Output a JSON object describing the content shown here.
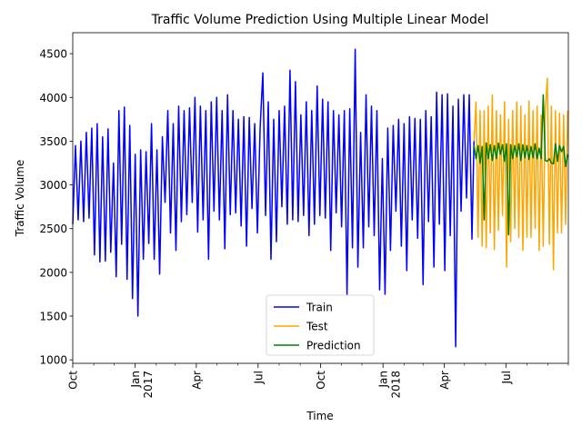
{
  "chart_data": {
    "type": "line",
    "title": "Traffic Volume Prediction Using Multiple Linear Model",
    "xlabel": "Time",
    "ylabel": "Traffic Volume",
    "xlim": [
      "2016-10-01",
      "2018-10-01"
    ],
    "ylim": [
      960,
      4740
    ],
    "grid": false,
    "legend_position": "lower-center",
    "y_ticks": [
      1000,
      1500,
      2000,
      2500,
      3000,
      3500,
      4000,
      4500
    ],
    "x_ticks": [
      {
        "date": "2016-10-01",
        "label": "Oct"
      },
      {
        "date": "2017-01-01",
        "label": "Jan",
        "label2": "2017"
      },
      {
        "date": "2017-04-01",
        "label": "Apr"
      },
      {
        "date": "2017-07-01",
        "label": "Jul"
      },
      {
        "date": "2017-10-01",
        "label": "Oct"
      },
      {
        "date": "2018-01-01",
        "label": "Jan",
        "label2": "2018"
      },
      {
        "date": "2018-04-01",
        "label": "Apr"
      },
      {
        "date": "2018-07-01",
        "label": "Jul"
      }
    ],
    "x_minor_ticks": [
      "2016-11-01",
      "2016-12-01",
      "2017-02-01",
      "2017-03-01",
      "2017-05-01",
      "2017-06-01",
      "2017-08-01",
      "2017-09-01",
      "2017-11-01",
      "2017-12-01",
      "2018-02-01",
      "2018-03-01",
      "2018-05-01",
      "2018-06-01",
      "2018-08-01",
      "2018-09-01",
      "2018-10-01"
    ],
    "series": [
      {
        "name": "Train",
        "color": "#0000ff",
        "x": [
          "2016-10-01",
          "2016-10-05",
          "2016-10-09",
          "2016-10-13",
          "2016-10-17",
          "2016-10-21",
          "2016-10-25",
          "2016-10-29",
          "2016-11-02",
          "2016-11-06",
          "2016-11-10",
          "2016-11-14",
          "2016-11-18",
          "2016-11-22",
          "2016-11-26",
          "2016-11-30",
          "2016-12-04",
          "2016-12-08",
          "2016-12-12",
          "2016-12-16",
          "2016-12-20",
          "2016-12-24",
          "2016-12-28",
          "2017-01-01",
          "2017-01-05",
          "2017-01-09",
          "2017-01-13",
          "2017-01-17",
          "2017-01-21",
          "2017-01-25",
          "2017-01-29",
          "2017-02-02",
          "2017-02-06",
          "2017-02-10",
          "2017-02-14",
          "2017-02-18",
          "2017-02-22",
          "2017-02-26",
          "2017-03-02",
          "2017-03-06",
          "2017-03-10",
          "2017-03-14",
          "2017-03-18",
          "2017-03-22",
          "2017-03-26",
          "2017-03-30",
          "2017-04-03",
          "2017-04-07",
          "2017-04-11",
          "2017-04-15",
          "2017-04-19",
          "2017-04-23",
          "2017-04-27",
          "2017-05-01",
          "2017-05-05",
          "2017-05-09",
          "2017-05-13",
          "2017-05-17",
          "2017-05-21",
          "2017-05-25",
          "2017-05-29",
          "2017-06-02",
          "2017-06-06",
          "2017-06-10",
          "2017-06-14",
          "2017-06-18",
          "2017-06-22",
          "2017-06-26",
          "2017-06-30",
          "2017-07-04",
          "2017-07-08",
          "2017-07-12",
          "2017-07-16",
          "2017-07-20",
          "2017-07-24",
          "2017-07-28",
          "2017-08-01",
          "2017-08-05",
          "2017-08-09",
          "2017-08-13",
          "2017-08-17",
          "2017-08-21",
          "2017-08-25",
          "2017-08-29",
          "2017-09-02",
          "2017-09-06",
          "2017-09-10",
          "2017-09-14",
          "2017-09-18",
          "2017-09-22",
          "2017-09-26",
          "2017-09-30",
          "2017-10-04",
          "2017-10-08",
          "2017-10-12",
          "2017-10-16",
          "2017-10-20",
          "2017-10-24",
          "2017-10-28",
          "2017-11-01",
          "2017-11-05",
          "2017-11-09",
          "2017-11-13",
          "2017-11-17",
          "2017-11-21",
          "2017-11-25",
          "2017-11-29",
          "2017-12-03",
          "2017-12-07",
          "2017-12-11",
          "2017-12-15",
          "2017-12-19",
          "2017-12-23",
          "2017-12-27",
          "2017-12-31",
          "2018-01-04",
          "2018-01-08",
          "2018-01-12",
          "2018-01-16",
          "2018-01-20",
          "2018-01-24",
          "2018-01-28",
          "2018-02-01",
          "2018-02-05",
          "2018-02-09",
          "2018-02-13",
          "2018-02-17",
          "2018-02-21",
          "2018-02-25",
          "2018-03-01",
          "2018-03-05",
          "2018-03-09",
          "2018-03-13",
          "2018-03-17",
          "2018-03-21",
          "2018-03-25",
          "2018-03-29",
          "2018-04-02",
          "2018-04-06",
          "2018-04-10",
          "2018-04-14",
          "2018-04-18",
          "2018-04-22",
          "2018-04-26",
          "2018-04-30",
          "2018-05-04",
          "2018-05-08",
          "2018-05-12",
          "2018-05-15"
        ],
        "values": [
          2550,
          3450,
          2600,
          3500,
          2580,
          3600,
          2620,
          3650,
          2200,
          3700,
          2120,
          3550,
          2130,
          3640,
          2230,
          3250,
          1950,
          3850,
          2320,
          3890,
          1920,
          3680,
          1700,
          3350,
          1500,
          3400,
          2150,
          3380,
          2330,
          3700,
          2150,
          3400,
          1980,
          3550,
          2800,
          3850,
          2450,
          3700,
          2250,
          3900,
          2580,
          3850,
          2660,
          3880,
          2800,
          4000,
          2460,
          3900,
          2600,
          3850,
          2150,
          3950,
          2700,
          4000,
          2600,
          3850,
          2270,
          4030,
          2660,
          3850,
          2680,
          3750,
          2530,
          3780,
          2300,
          3770,
          2730,
          3700,
          2450,
          3650,
          4280,
          2650,
          3950,
          2150,
          3750,
          2350,
          3850,
          2750,
          3900,
          2550,
          4310,
          2600,
          4180,
          2580,
          3800,
          2650,
          3950,
          2420,
          3850,
          2550,
          4130,
          2650,
          3980,
          2620,
          3950,
          2250,
          3850,
          2680,
          3800,
          2520,
          3850,
          1750,
          3870,
          2280,
          4550,
          2060,
          3600,
          2280,
          4030,
          2520,
          3900,
          2420,
          3850,
          1800,
          3300,
          1750,
          3650,
          2250,
          3680,
          2700,
          3750,
          2300,
          3700,
          2020,
          3780,
          2600,
          3760,
          2390,
          3750,
          1860,
          3850,
          2580,
          3780,
          2060,
          4060,
          2550,
          4030,
          2020,
          4040,
          2420,
          3900,
          1150,
          3980,
          2700,
          4030,
          2850,
          4030,
          2380,
          3500
        ]
      },
      {
        "name": "Test",
        "color": "#ffa500",
        "x": [
          "2018-05-15",
          "2018-05-18",
          "2018-05-21",
          "2018-05-24",
          "2018-05-27",
          "2018-05-30",
          "2018-06-02",
          "2018-06-05",
          "2018-06-08",
          "2018-06-11",
          "2018-06-14",
          "2018-06-17",
          "2018-06-20",
          "2018-06-23",
          "2018-06-26",
          "2018-06-29",
          "2018-07-02",
          "2018-07-05",
          "2018-07-08",
          "2018-07-11",
          "2018-07-14",
          "2018-07-17",
          "2018-07-20",
          "2018-07-23",
          "2018-07-26",
          "2018-07-29",
          "2018-08-01",
          "2018-08-04",
          "2018-08-07",
          "2018-08-10",
          "2018-08-13",
          "2018-08-16",
          "2018-08-19",
          "2018-08-22",
          "2018-08-25",
          "2018-08-28",
          "2018-08-31",
          "2018-09-03",
          "2018-09-06",
          "2018-09-09",
          "2018-09-12",
          "2018-09-15",
          "2018-09-18",
          "2018-09-21",
          "2018-09-24",
          "2018-09-27",
          "2018-09-30"
        ],
        "values": [
          3500,
          3950,
          2400,
          3850,
          2300,
          3850,
          2280,
          3900,
          2450,
          4030,
          2260,
          3850,
          2480,
          3800,
          2650,
          3950,
          2060,
          3750,
          2350,
          3850,
          2500,
          3950,
          2400,
          3900,
          2250,
          3800,
          2400,
          3960,
          2400,
          3850,
          2500,
          3900,
          2250,
          3800,
          2300,
          3850,
          4220,
          2320,
          3900,
          2030,
          3850,
          2450,
          3820,
          2450,
          3800,
          2550,
          3850
        ]
      },
      {
        "name": "Prediction",
        "color": "#008000",
        "x": [
          "2018-05-15",
          "2018-05-18",
          "2018-05-21",
          "2018-05-24",
          "2018-05-27",
          "2018-05-30",
          "2018-06-02",
          "2018-06-05",
          "2018-06-08",
          "2018-06-11",
          "2018-06-14",
          "2018-06-17",
          "2018-06-20",
          "2018-06-23",
          "2018-06-26",
          "2018-06-29",
          "2018-07-02",
          "2018-07-05",
          "2018-07-08",
          "2018-07-11",
          "2018-07-14",
          "2018-07-17",
          "2018-07-20",
          "2018-07-23",
          "2018-07-26",
          "2018-07-29",
          "2018-08-01",
          "2018-08-04",
          "2018-08-07",
          "2018-08-10",
          "2018-08-13",
          "2018-08-16",
          "2018-08-19",
          "2018-08-22",
          "2018-08-25",
          "2018-08-28",
          "2018-08-31",
          "2018-09-03",
          "2018-09-06",
          "2018-09-09",
          "2018-09-12",
          "2018-09-15",
          "2018-09-18",
          "2018-09-21",
          "2018-09-24",
          "2018-09-27",
          "2018-09-30"
        ],
        "values": [
          3450,
          3300,
          3450,
          3250,
          3440,
          2600,
          3480,
          3300,
          3460,
          3280,
          3450,
          3300,
          3480,
          3350,
          3460,
          3270,
          3470,
          2430,
          3460,
          3300,
          3450,
          3320,
          3470,
          3280,
          3460,
          3310,
          3450,
          3290,
          3440,
          3310,
          3470,
          3300,
          3420,
          3300,
          4030,
          3280,
          3270,
          3300,
          3250,
          3240,
          3470,
          3270,
          3450,
          3380,
          3440,
          3210,
          3350
        ]
      }
    ]
  }
}
